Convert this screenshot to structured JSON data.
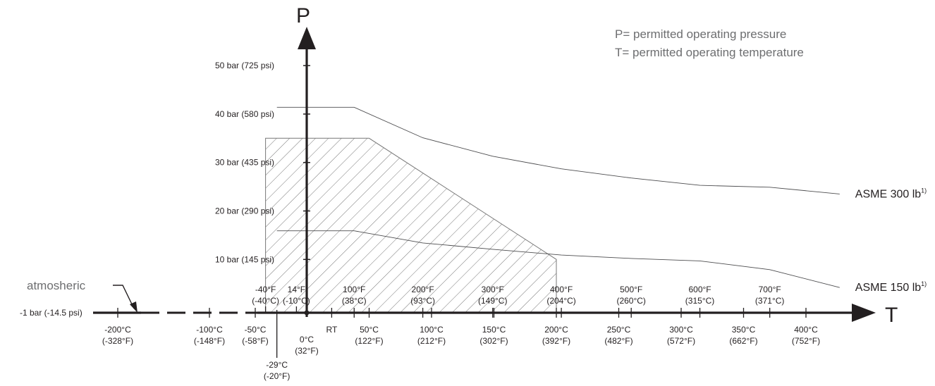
{
  "chart_data": {
    "type": "line",
    "title": "",
    "y_axis_title": "P",
    "x_axis_title": "T",
    "legend": [
      "P= permitted operating pressure",
      "T= permitted operating temperature"
    ],
    "y_ticks": [
      {
        "value": 50,
        "label": "50 bar (725 psi)"
      },
      {
        "value": 40,
        "label": "40 bar (580 psi)"
      },
      {
        "value": 30,
        "label": "30 bar (435 psi)"
      },
      {
        "value": 20,
        "label": "20 bar (290 psi)"
      },
      {
        "value": 10,
        "label": "10 bar (145 psi)"
      },
      {
        "value": -1,
        "label": "-1 bar (-14.5 psi)"
      }
    ],
    "x_ticks_top": [
      {
        "t": -40,
        "l1": "-40°F",
        "l2": "(-40°C)"
      },
      {
        "t": -10,
        "l1": "14°F",
        "l2": "(-10°C)"
      },
      {
        "t": 38,
        "l1": "100°F",
        "l2": "(38°C)"
      },
      {
        "t": 93,
        "l1": "200°F",
        "l2": "(93°C)"
      },
      {
        "t": 149,
        "l1": "300°F",
        "l2": "(149°C)"
      },
      {
        "t": 204,
        "l1": "400°F",
        "l2": "(204°C)"
      },
      {
        "t": 260,
        "l1": "500°F",
        "l2": "(260°C)"
      },
      {
        "t": 315,
        "l1": "600°F",
        "l2": "(315°C)"
      },
      {
        "t": 371,
        "l1": "700°F",
        "l2": "(371°C)"
      }
    ],
    "x_ticks_bottom": [
      {
        "t": -200,
        "l1": "-200°C",
        "l2": "(-328°F)"
      },
      {
        "t": -100,
        "l1": "-100°C",
        "l2": "(-148°F)"
      },
      {
        "t": -50,
        "l1": "-50°C",
        "l2": "(-58°F)"
      },
      {
        "t": 0,
        "l1": "0°C",
        "l2": "(32°F)"
      },
      {
        "t": 20,
        "l1": "RT",
        "l2": ""
      },
      {
        "t": 50,
        "l1": "50°C",
        "l2": "(122°F)"
      },
      {
        "t": 100,
        "l1": "100°C",
        "l2": "(212°F)"
      },
      {
        "t": 150,
        "l1": "150°C",
        "l2": "(302°F)"
      },
      {
        "t": 200,
        "l1": "200°C",
        "l2": "(392°F)"
      },
      {
        "t": 250,
        "l1": "250°C",
        "l2": "(482°F)"
      },
      {
        "t": 300,
        "l1": "300°C",
        "l2": "(572°F)"
      },
      {
        "t": 350,
        "l1": "350°C",
        "l2": "(662°F)"
      },
      {
        "t": 400,
        "l1": "400°C",
        "l2": "(752°F)"
      }
    ],
    "marker_low": {
      "t": -29,
      "l1": "-29°C",
      "l2": "(-20°F)"
    },
    "atmospheric_label": "atmosheric",
    "series": [
      {
        "name": "ASME 300 lb",
        "superscript": "1)",
        "points": [
          [
            -29,
            41.4
          ],
          [
            38,
            41.4
          ],
          [
            93,
            35.1
          ],
          [
            149,
            31.3
          ],
          [
            204,
            28.7
          ],
          [
            260,
            26.8
          ],
          [
            315,
            25.3
          ],
          [
            371,
            24.9
          ],
          [
            427,
            23.5
          ]
        ]
      },
      {
        "name": "ASME 150 lb",
        "superscript": "1)",
        "points": [
          [
            -29,
            15.9
          ],
          [
            38,
            15.9
          ],
          [
            93,
            13.4
          ],
          [
            149,
            12.1
          ],
          [
            204,
            10.9
          ],
          [
            260,
            10.2
          ],
          [
            315,
            9.7
          ],
          [
            371,
            7.9
          ],
          [
            427,
            4.2
          ]
        ]
      }
    ],
    "permitted_area": {
      "points": [
        [
          -40,
          -1
        ],
        [
          -40,
          35
        ],
        [
          50,
          35
        ],
        [
          200,
          10
        ],
        [
          200,
          -1
        ]
      ],
      "fill": "diagonal-hatch"
    },
    "colors": {
      "axis": "#231f20",
      "curve": "#4d4d4f",
      "legend": "#6d6e70"
    }
  }
}
